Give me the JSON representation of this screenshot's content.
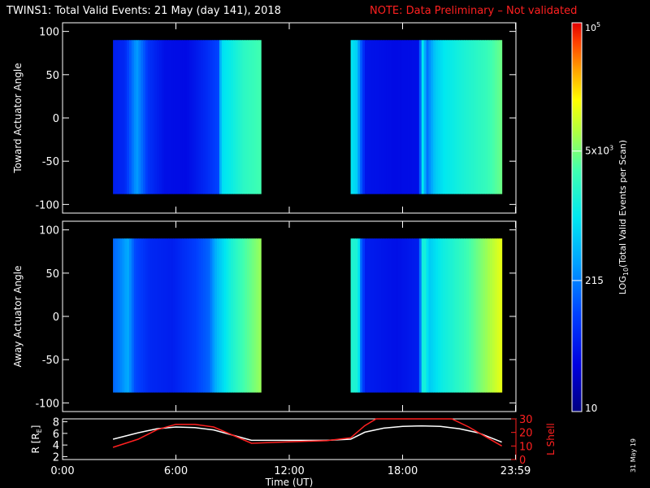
{
  "header": {
    "title": "TWINS1: Total Valid Events: 21 May (day 141), 2018",
    "note": "NOTE: Data Preliminary – Not validated"
  },
  "stamp": "31 May 19",
  "colors": {
    "background": "#000000",
    "axes": "#ffffff",
    "note": "#ff2020",
    "l_shell": "#ff2020",
    "r_line": "#ffffff"
  },
  "colorbar": {
    "label": "LOG10(Total Valid Events per Scan)",
    "label_base": "LOG",
    "label_sub": "10",
    "label_rest": "(Total Valid Events per Scan)",
    "ticks": [
      {
        "label": "10",
        "fraction": 0.0
      },
      {
        "label": "215",
        "fraction": 0.337
      },
      {
        "label": "5x10",
        "sup": "3",
        "fraction": 0.67
      },
      {
        "label": "10",
        "sup": "5",
        "fraction": 1.0
      }
    ],
    "scale": "log"
  },
  "chart_data": [
    {
      "type": "heatmap",
      "ylabel": "Toward Actuator Angle",
      "xlim": [
        0,
        24
      ],
      "ylim": [
        -110,
        110
      ],
      "yticks": [
        100,
        50,
        0,
        -50,
        -100
      ],
      "y_range_data": [
        -88,
        90
      ],
      "segments": [
        {
          "t_start": 2.67,
          "t_end": 10.5,
          "profile": [
            [
              0,
              0.18
            ],
            [
              0.08,
              0.2
            ],
            [
              0.16,
              0.38
            ],
            [
              0.24,
              0.22
            ],
            [
              0.35,
              0.15
            ],
            [
              0.5,
              0.14
            ],
            [
              0.62,
              0.2
            ],
            [
              0.72,
              0.26
            ],
            [
              0.73,
              0.48
            ],
            [
              0.8,
              0.52
            ],
            [
              0.88,
              0.58
            ],
            [
              1,
              0.62
            ]
          ]
        },
        {
          "t_start": 15.25,
          "t_end": 23.25,
          "profile": [
            [
              0,
              0.5
            ],
            [
              0.04,
              0.46
            ],
            [
              0.07,
              0.28
            ],
            [
              0.1,
              0.16
            ],
            [
              0.3,
              0.14
            ],
            [
              0.45,
              0.15
            ],
            [
              0.48,
              0.55
            ],
            [
              0.5,
              0.3
            ],
            [
              0.56,
              0.45
            ],
            [
              0.62,
              0.5
            ],
            [
              0.75,
              0.55
            ],
            [
              0.9,
              0.6
            ],
            [
              1,
              0.66
            ]
          ]
        }
      ]
    },
    {
      "type": "heatmap",
      "ylabel": "Away Actuator Angle",
      "xlim": [
        0,
        24
      ],
      "ylim": [
        -110,
        110
      ],
      "yticks": [
        100,
        50,
        0,
        -50,
        -100
      ],
      "y_range_data": [
        -88,
        90
      ],
      "segments": [
        {
          "t_start": 2.67,
          "t_end": 10.5,
          "profile": [
            [
              0,
              0.3
            ],
            [
              0.05,
              0.34
            ],
            [
              0.1,
              0.4
            ],
            [
              0.15,
              0.26
            ],
            [
              0.25,
              0.2
            ],
            [
              0.4,
              0.18
            ],
            [
              0.55,
              0.24
            ],
            [
              0.65,
              0.3
            ],
            [
              0.7,
              0.42
            ],
            [
              0.8,
              0.55
            ],
            [
              0.88,
              0.62
            ],
            [
              1,
              0.7
            ]
          ]
        },
        {
          "t_start": 15.25,
          "t_end": 23.25,
          "profile": [
            [
              0,
              0.56
            ],
            [
              0.05,
              0.55
            ],
            [
              0.07,
              0.3
            ],
            [
              0.1,
              0.18
            ],
            [
              0.3,
              0.15
            ],
            [
              0.45,
              0.18
            ],
            [
              0.48,
              0.58
            ],
            [
              0.52,
              0.45
            ],
            [
              0.6,
              0.52
            ],
            [
              0.75,
              0.6
            ],
            [
              0.9,
              0.7
            ],
            [
              1,
              0.78
            ]
          ]
        }
      ]
    },
    {
      "type": "line",
      "ylabel": "R [RE]",
      "ylabel_base": "R [R",
      "ylabel_sub": "E",
      "ylabel_end": "]",
      "y2label": "L Shell",
      "xlabel": "Time (UT)",
      "xlim": [
        0,
        24
      ],
      "ylim": [
        1.5,
        8.5
      ],
      "y2lim": [
        0,
        30
      ],
      "yticks": [
        2,
        4,
        6,
        8
      ],
      "y2ticks": [
        0,
        10,
        20,
        30
      ],
      "xticks": [
        {
          "t": 0,
          "label": "0:00"
        },
        {
          "t": 6,
          "label": "6:00"
        },
        {
          "t": 12,
          "label": "12:00"
        },
        {
          "t": 18,
          "label": "18:00"
        },
        {
          "t": 23.98,
          "label": "23:59"
        }
      ],
      "series": [
        {
          "axis": "left",
          "x": [
            2.67,
            4,
            5,
            6,
            7,
            8,
            9,
            10,
            12,
            14,
            15.25,
            16,
            17,
            18,
            19,
            20,
            21,
            22,
            23.25
          ],
          "values": [
            5.0,
            6.1,
            6.8,
            7.1,
            7.0,
            6.6,
            5.7,
            4.8,
            4.8,
            4.8,
            5.0,
            6.2,
            6.9,
            7.2,
            7.3,
            7.2,
            6.8,
            6.1,
            4.5
          ]
        },
        {
          "axis": "right",
          "x": [
            2.67,
            4,
            5,
            6,
            7,
            8,
            9,
            10,
            12,
            14,
            15.25,
            16,
            16.6,
            20.6,
            21.5,
            22.5,
            23.25
          ],
          "values": [
            9,
            15,
            22,
            26,
            26,
            24,
            18,
            12,
            13,
            14,
            16,
            25,
            30,
            30,
            24,
            16,
            10
          ]
        }
      ]
    }
  ]
}
